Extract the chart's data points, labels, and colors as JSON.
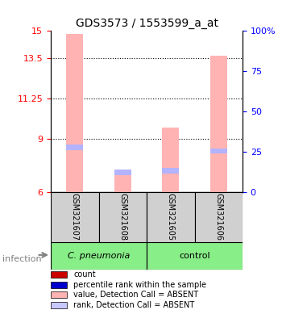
{
  "title": "GDS3573 / 1553599_a_at",
  "samples": [
    "GSM321607",
    "GSM321608",
    "GSM321605",
    "GSM321606"
  ],
  "groups": [
    "C. pneumonia",
    "C. pneumonia",
    "control",
    "control"
  ],
  "group_colors": [
    "#99ee88",
    "#99ee88",
    "#99ee88",
    "#99ee88"
  ],
  "bar_values": [
    14.85,
    7.2,
    9.6,
    13.6
  ],
  "bar_colors_absent": "#ffb3b3",
  "rank_values": [
    8.5,
    7.1,
    7.2,
    8.3
  ],
  "rank_colors_absent": "#b3b3ff",
  "ylim_left": [
    6,
    15
  ],
  "ylim_right": [
    0,
    100
  ],
  "yticks_left": [
    6,
    9,
    11.25,
    13.5,
    15
  ],
  "yticks_right": [
    0,
    25,
    50,
    75,
    100
  ],
  "ytick_labels_right": [
    "0",
    "25",
    "50",
    "75",
    "100%"
  ],
  "grid_color": "#000000",
  "sample_box_color": "#d0d0d0",
  "cpneumonia_color": "#88ee88",
  "control_color": "#88ee88",
  "bar_width": 0.35,
  "legend_items": [
    {
      "color": "#cc0000",
      "label": "count"
    },
    {
      "color": "#0000cc",
      "label": "percentile rank within the sample"
    },
    {
      "color": "#ffb3b3",
      "label": "value, Detection Call = ABSENT"
    },
    {
      "color": "#c8c8ff",
      "label": "rank, Detection Call = ABSENT"
    }
  ]
}
